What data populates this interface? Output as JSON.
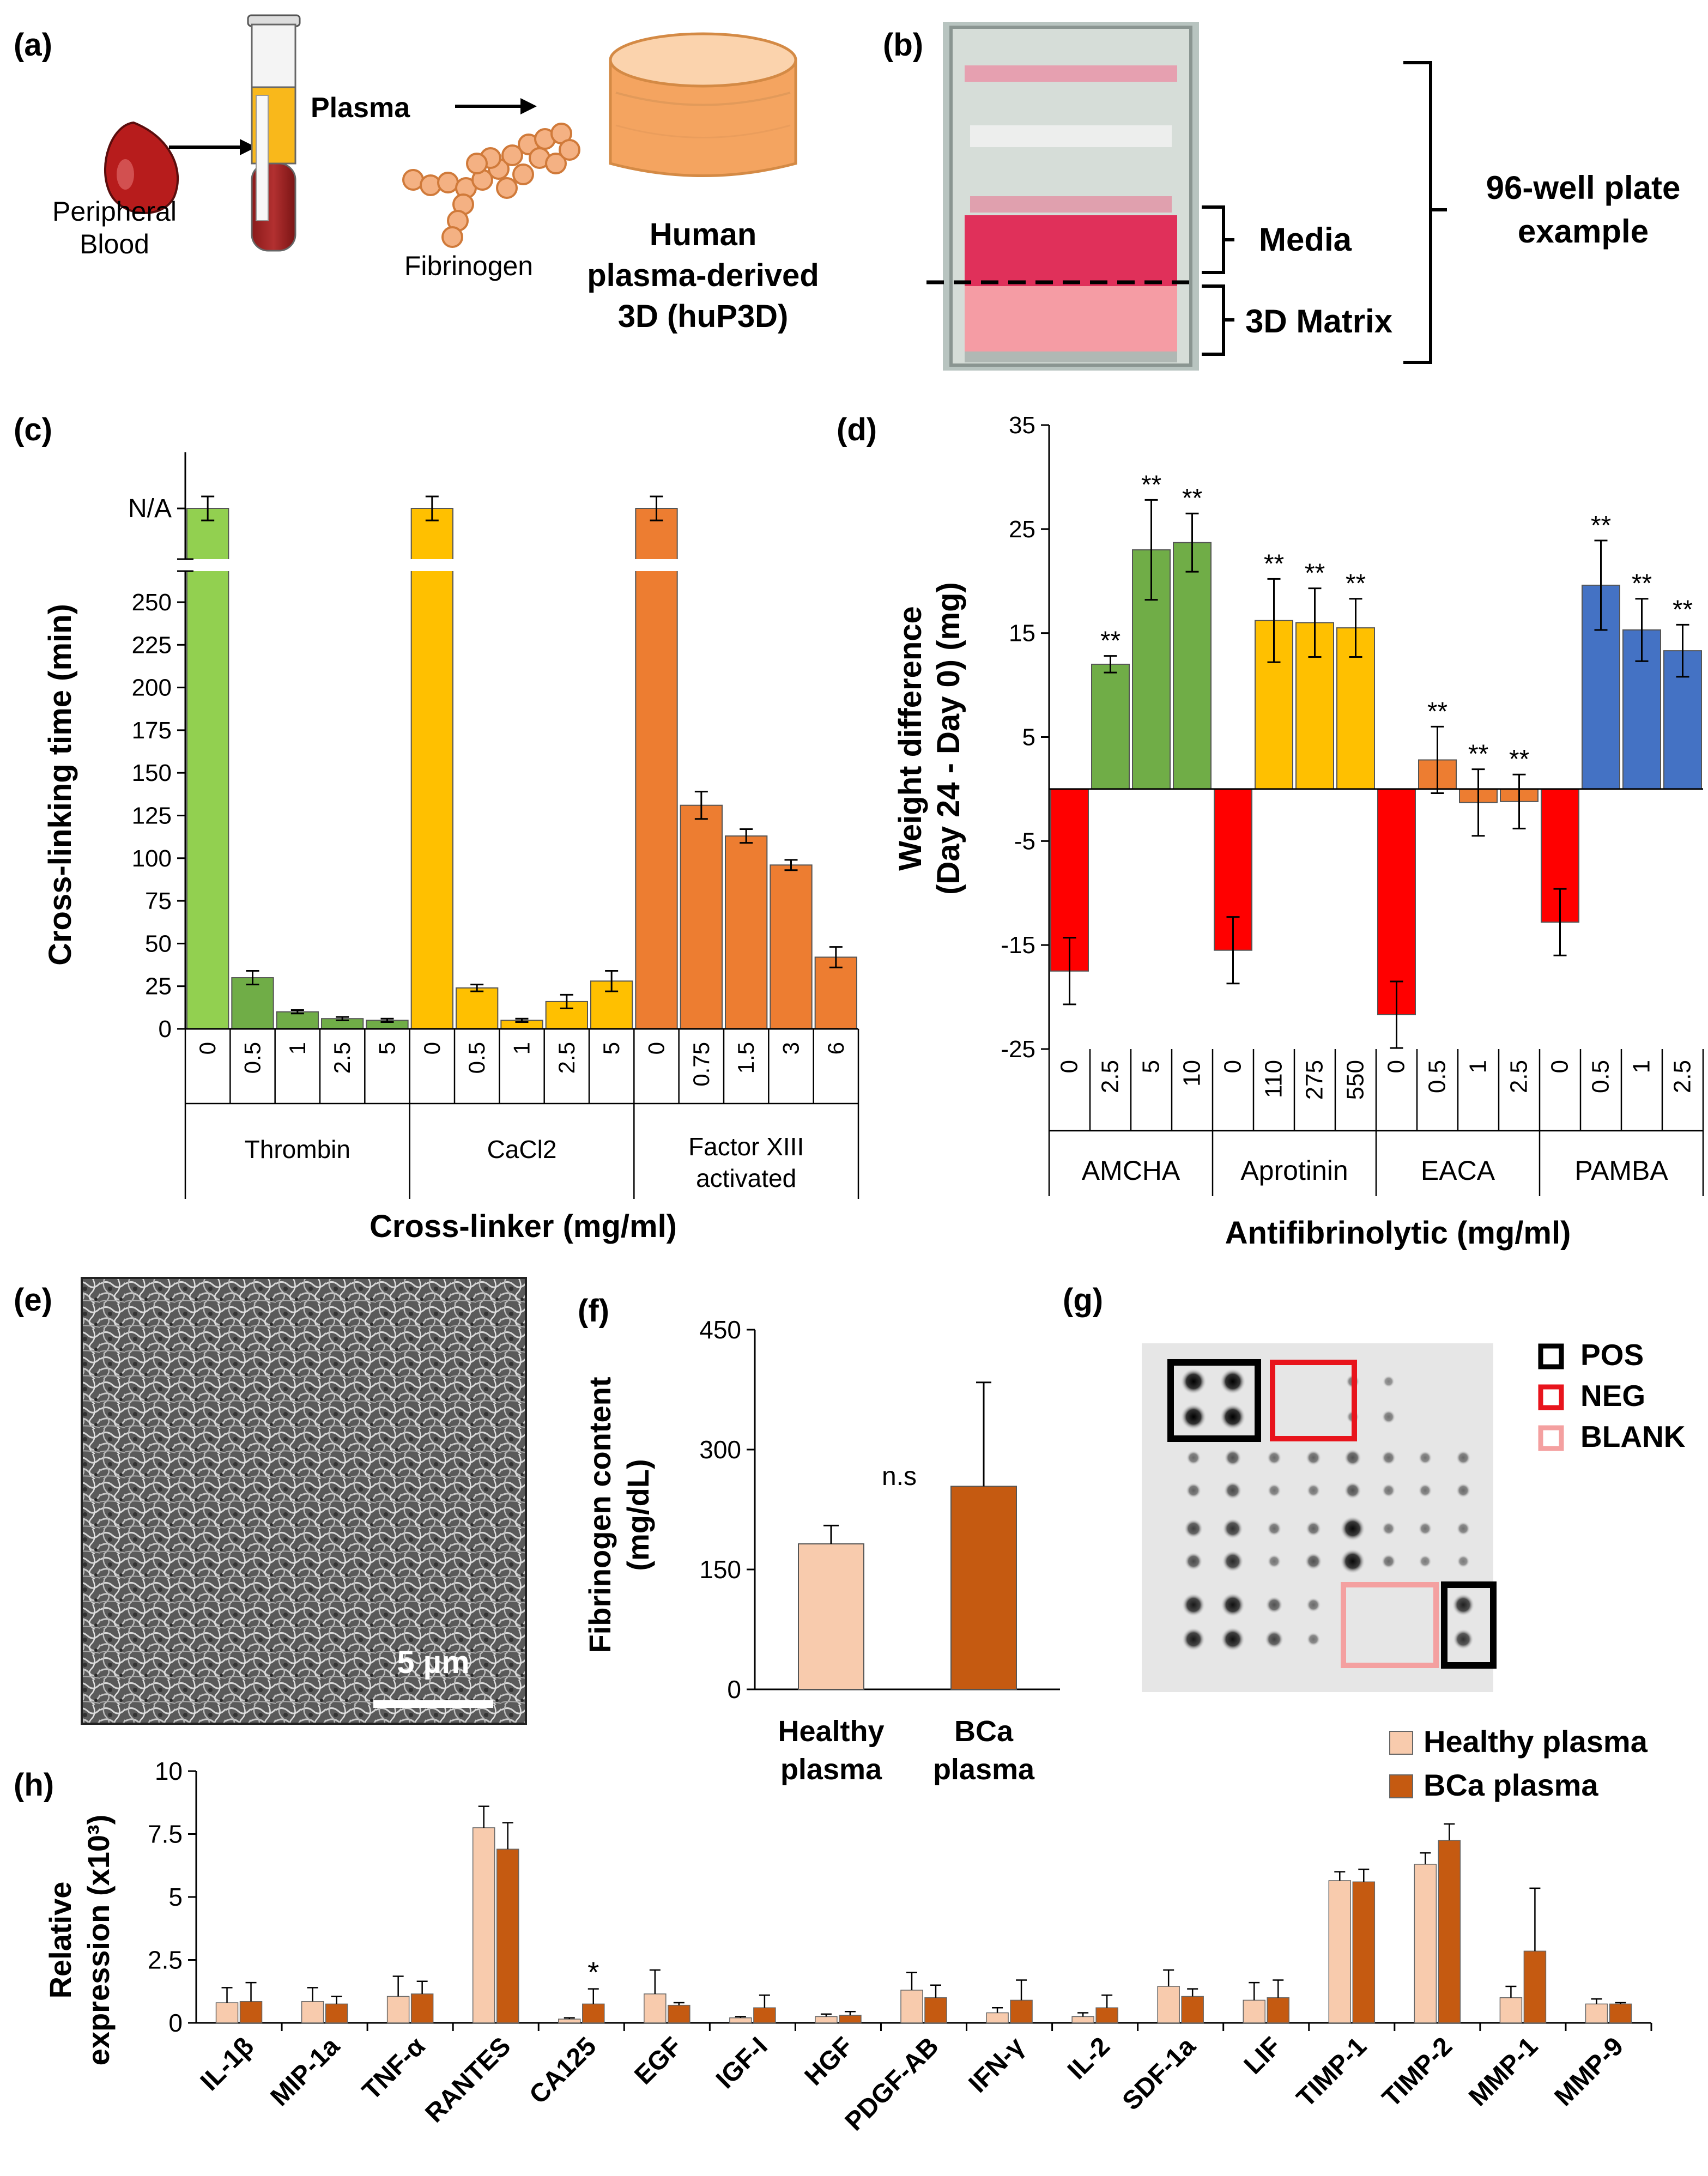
{
  "panels": {
    "a": {
      "label": "(a)",
      "peripheral_line1": "Peripheral",
      "peripheral_line2": "Blood",
      "plasma": "Plasma",
      "fibrinogen": "Fibrinogen",
      "huP3D_line1": "Human",
      "huP3D_line2": "plasma-derived",
      "huP3D_line3": "3D (huP3D)"
    },
    "b": {
      "label": "(b)",
      "media": "Media",
      "matrix": "3D Matrix",
      "plate_line1": "96-well plate",
      "plate_line2": "example"
    },
    "c": {
      "label": "(c)"
    },
    "d": {
      "label": "(d)"
    },
    "e": {
      "label": "(e)",
      "scale": "5 µm"
    },
    "f": {
      "label": "(f)"
    },
    "g": {
      "label": "(g)",
      "legend": [
        "POS",
        "NEG",
        "BLANK"
      ],
      "legend_colors": [
        "#000000",
        "#e8141c",
        "#f4a0a0"
      ]
    },
    "h": {
      "label": "(h)"
    }
  },
  "chart_data": [
    {
      "id": "c",
      "type": "bar",
      "title": "",
      "ylabel": "Cross-linking time (min)",
      "xlabel": "Cross-linker (mg/ml)",
      "yticks": [
        0,
        25,
        50,
        75,
        100,
        125,
        150,
        175,
        200,
        225,
        250
      ],
      "ylim": [
        0,
        265
      ],
      "break_label": "N/A",
      "groups": [
        {
          "name": "Thrombin",
          "concentrations": [
            "0",
            "0.5",
            "1",
            "2.5",
            "5"
          ],
          "values": [
            "N/A",
            30,
            10,
            6,
            5
          ],
          "errors": [
            0,
            4,
            1,
            1,
            1
          ],
          "colors": [
            "#92d050",
            "#70ad47",
            "#70ad47",
            "#70ad47",
            "#70ad47"
          ]
        },
        {
          "name": "CaCl2",
          "concentrations": [
            "0",
            "0.5",
            "1",
            "2.5",
            "5"
          ],
          "values": [
            "N/A",
            24,
            5,
            16,
            28
          ],
          "errors": [
            0,
            2,
            1,
            4,
            6
          ],
          "colors": [
            "#ffc000",
            "#ffc000",
            "#ffc000",
            "#ffc000",
            "#ffc000"
          ]
        },
        {
          "name": "Factor XIII activated",
          "name_lines": [
            "Factor XIII",
            "activated"
          ],
          "concentrations": [
            "0",
            "0.75",
            "1.5",
            "3",
            "6"
          ],
          "values": [
            "N/A",
            131,
            113,
            96,
            42
          ],
          "errors": [
            0,
            8,
            4,
            3,
            6
          ],
          "colors": [
            "#ed7d31",
            "#ed7d31",
            "#ed7d31",
            "#ed7d31",
            "#ed7d31"
          ]
        }
      ]
    },
    {
      "id": "d",
      "type": "bar",
      "title": "",
      "ylabel_lines": [
        "Weight difference",
        "(Day 24 - Day 0) (mg)"
      ],
      "ylabel": "Weight difference (Day 24 - Day 0) (mg)",
      "xlabel": "Antifibrinolytic  (mg/ml)",
      "yticks": [
        -25,
        -15,
        -5,
        5,
        15,
        25,
        35
      ],
      "ylim": [
        -25,
        35
      ],
      "significance": "**",
      "groups": [
        {
          "name": "AMCHA",
          "concentrations": [
            "0",
            "2.5",
            "5",
            "10"
          ],
          "values": [
            -17.5,
            12,
            23,
            23.7
          ],
          "errors": [
            3.2,
            0.8,
            4.8,
            2.8
          ],
          "colors": [
            "#ff0000",
            "#70ad47",
            "#70ad47",
            "#70ad47"
          ],
          "sig": [
            false,
            true,
            true,
            true
          ]
        },
        {
          "name": "Aprotinin",
          "concentrations": [
            "0",
            "110",
            "275",
            "550"
          ],
          "values": [
            -15.5,
            16.2,
            16,
            15.5
          ],
          "errors": [
            3.2,
            4,
            3.3,
            2.8
          ],
          "colors": [
            "#ff0000",
            "#ffc000",
            "#ffc000",
            "#ffc000"
          ],
          "sig": [
            false,
            true,
            true,
            true
          ]
        },
        {
          "name": "EACA",
          "concentrations": [
            "0",
            "0.5",
            "1",
            "2.5"
          ],
          "values": [
            -21.7,
            2.8,
            -1.3,
            -1.2
          ],
          "errors": [
            3.2,
            3.2,
            3.2,
            2.6
          ],
          "colors": [
            "#ff0000",
            "#ed7d31",
            "#ed7d31",
            "#ed7d31"
          ],
          "sig": [
            false,
            true,
            true,
            true
          ]
        },
        {
          "name": "PAMBA",
          "concentrations": [
            "0",
            "0.5",
            "1",
            "2.5"
          ],
          "values": [
            -12.8,
            19.6,
            15.3,
            13.3
          ],
          "errors": [
            3.2,
            4.3,
            3,
            2.5
          ],
          "colors": [
            "#ff0000",
            "#4472c4",
            "#4472c4",
            "#4472c4"
          ],
          "sig": [
            false,
            true,
            true,
            true
          ]
        }
      ]
    },
    {
      "id": "f",
      "type": "bar",
      "title": "",
      "ylabel_lines": [
        "Fibrinogen content",
        "(mg/dL)"
      ],
      "ylabel": "Fibrinogen content (mg/dL)",
      "yticks": [
        0,
        150,
        300,
        450
      ],
      "ylim": [
        0,
        450
      ],
      "categories": [
        "Healthy plasma",
        "BCa plasma"
      ],
      "category_lines": [
        [
          "Healthy",
          "plasma"
        ],
        [
          "BCa",
          "plasma"
        ]
      ],
      "values": [
        182,
        254
      ],
      "errors": [
        23,
        130
      ],
      "colors": [
        "#f8cbad",
        "#c55a11"
      ],
      "annotation": "n.s"
    },
    {
      "id": "h",
      "type": "bar",
      "title": "",
      "ylabel_lines": [
        "Relative",
        "expression (x10³)"
      ],
      "ylabel": "Relative expression (x10³)",
      "yticks": [
        0,
        2.5,
        5,
        7.5,
        10
      ],
      "ytick_labels": [
        "0",
        "2.5",
        "5",
        "7.5",
        "10"
      ],
      "ylim": [
        0,
        10
      ],
      "categories": [
        "IL-1β",
        "MIP-1a",
        "TNF-α",
        "RANTES",
        "CA125",
        "EGF",
        "IGF-I",
        "HGF",
        "PDGF-AB",
        "IFN-γ",
        "IL-2",
        "SDF-1a",
        "LIF",
        "TIMP-1",
        "TIMP-2",
        "MMP-1",
        "MMP-9"
      ],
      "series": [
        {
          "name": "Healthy plasma",
          "color": "#f8cbad",
          "values": [
            0.8,
            0.85,
            1.05,
            7.75,
            0.15,
            1.15,
            0.2,
            0.25,
            1.3,
            0.4,
            0.25,
            1.45,
            0.9,
            5.65,
            6.3,
            1.0,
            0.75
          ],
          "errors": [
            0.6,
            0.55,
            0.8,
            0.85,
            0.05,
            0.95,
            0.05,
            0.1,
            0.7,
            0.2,
            0.15,
            0.65,
            0.7,
            0.35,
            0.45,
            0.45,
            0.2
          ]
        },
        {
          "name": "BCa plasma",
          "color": "#c55a11",
          "values": [
            0.85,
            0.75,
            1.15,
            6.9,
            0.75,
            0.7,
            0.6,
            0.3,
            1.0,
            0.9,
            0.6,
            1.05,
            1.0,
            5.6,
            7.25,
            2.85,
            0.75
          ],
          "errors": [
            0.75,
            0.3,
            0.5,
            1.05,
            0.6,
            0.1,
            0.5,
            0.15,
            0.5,
            0.8,
            0.5,
            0.3,
            0.7,
            0.5,
            0.65,
            2.5,
            0.05
          ]
        }
      ],
      "annotations": [
        {
          "category": "CA125",
          "text": "*"
        }
      ]
    }
  ]
}
